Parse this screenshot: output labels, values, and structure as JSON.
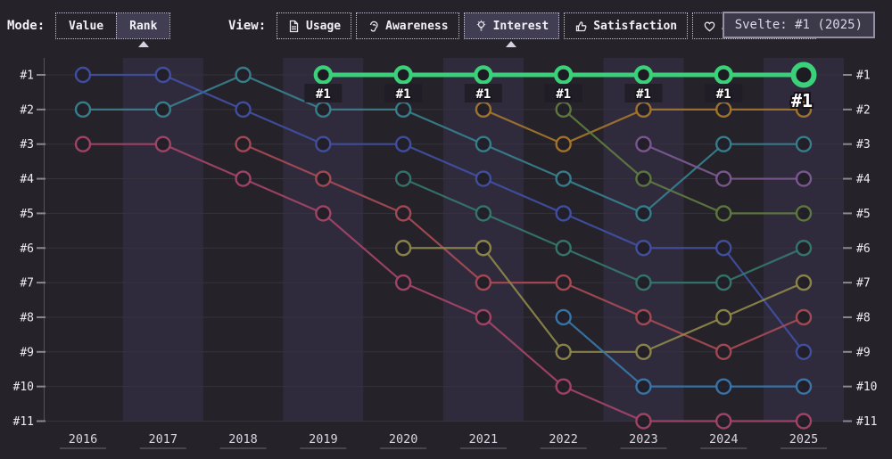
{
  "toolbar": {
    "mode_label": "Mode:",
    "mode_options": [
      {
        "label": "Value",
        "selected": false
      },
      {
        "label": "Rank",
        "selected": true
      }
    ],
    "view_label": "View:",
    "view_options": [
      {
        "label": "Usage",
        "icon": "file-icon",
        "selected": false
      },
      {
        "label": "Awareness",
        "icon": "ear-icon",
        "selected": false
      },
      {
        "label": "Interest",
        "icon": "bulb-icon",
        "selected": true
      },
      {
        "label": "Satisfaction",
        "icon": "thumbs-up-icon",
        "selected": false
      },
      {
        "label": "Appreciation",
        "icon": "heart-icon",
        "selected": false
      }
    ]
  },
  "tooltip": {
    "text": "Svelte: #1 (2025)"
  },
  "colors": {
    "background": "#252229",
    "band": "#2f2b3c",
    "highlight": "#3bd07a",
    "axis": "#55515e",
    "tick": "#8a8695",
    "grid": "#36333e",
    "rank_label": "#eceaf2",
    "year_label": "#d8d4e0"
  },
  "chart_data": {
    "type": "line",
    "variant": "rank-bump",
    "x_labels": [
      "2016",
      "2017",
      "2018",
      "2019",
      "2020",
      "2021",
      "2022",
      "2023",
      "2024",
      "2025"
    ],
    "rank_labels": [
      "#1",
      "#2",
      "#3",
      "#4",
      "#5",
      "#6",
      "#7",
      "#8",
      "#9",
      "#10",
      "#11"
    ],
    "ylim": [
      1,
      11
    ],
    "grid": true,
    "banded_columns": [
      "2017",
      "2019",
      "2021",
      "2023",
      "2025"
    ],
    "highlighted_series": "Svelte",
    "highlight_point_label": "#1",
    "series": [
      {
        "name": "Svelte",
        "color": "#3bd07a",
        "highlight": true,
        "ranks": [
          null,
          null,
          null,
          1,
          1,
          1,
          1,
          1,
          1,
          1
        ]
      },
      {
        "name": "teal",
        "color": "#38818f",
        "highlight": false,
        "ranks": [
          2,
          2,
          1,
          2,
          2,
          3,
          4,
          5,
          3,
          3
        ]
      },
      {
        "name": "indigo",
        "color": "#4150a4",
        "highlight": false,
        "ranks": [
          1,
          1,
          2,
          3,
          3,
          4,
          5,
          6,
          6,
          9
        ]
      },
      {
        "name": "rose",
        "color": "#a64568",
        "highlight": false,
        "ranks": [
          3,
          3,
          4,
          5,
          7,
          8,
          10,
          11,
          11,
          11
        ]
      },
      {
        "name": "brick-red",
        "color": "#a84b55",
        "highlight": false,
        "ranks": [
          null,
          null,
          3,
          4,
          5,
          7,
          7,
          8,
          9,
          8
        ]
      },
      {
        "name": "sea-teal",
        "color": "#35786e",
        "highlight": false,
        "ranks": [
          null,
          null,
          null,
          null,
          4,
          5,
          6,
          7,
          7,
          6
        ]
      },
      {
        "name": "olive",
        "color": "#8e884b",
        "highlight": false,
        "ranks": [
          null,
          null,
          null,
          null,
          6,
          6,
          9,
          9,
          8,
          7
        ]
      },
      {
        "name": "gold",
        "color": "#a5772d",
        "highlight": false,
        "ranks": [
          null,
          null,
          null,
          null,
          null,
          2,
          3,
          2,
          2,
          2
        ]
      },
      {
        "name": "forest",
        "color": "#5f7b40",
        "highlight": false,
        "ranks": [
          null,
          null,
          null,
          null,
          null,
          null,
          2,
          4,
          5,
          5
        ]
      },
      {
        "name": "steel-blue",
        "color": "#3a78ad",
        "highlight": false,
        "ranks": [
          null,
          null,
          null,
          null,
          null,
          null,
          8,
          10,
          10,
          10
        ]
      },
      {
        "name": "purple",
        "color": "#7d5a93",
        "highlight": false,
        "ranks": [
          null,
          null,
          null,
          null,
          null,
          null,
          null,
          3,
          4,
          4
        ]
      }
    ]
  }
}
